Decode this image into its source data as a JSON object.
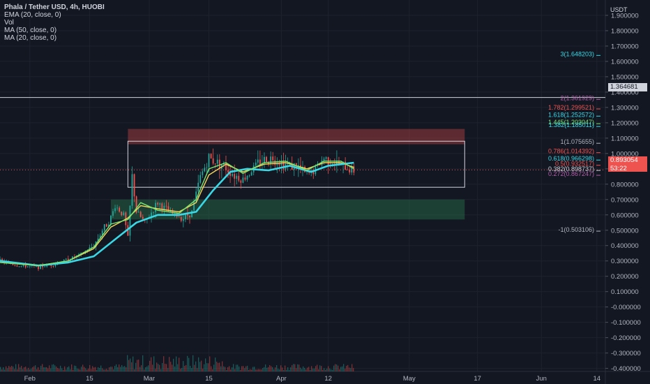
{
  "legend": {
    "symbol": "Phala / Tether USD, 4h, HUOBI",
    "indicators": [
      "EMA (20, close, 0)",
      "Vol",
      "MA (50, close, 0)",
      "MA (20, close, 0)"
    ]
  },
  "currency": "USDT",
  "last_price": {
    "value": "0.893054",
    "countdown": "53:22",
    "color": "#ef5350"
  },
  "hline_price": {
    "value": "1.364681"
  },
  "colors": {
    "background": "#131722",
    "grid": "#1e222d",
    "axis_text": "#b2b5be",
    "up": "#26a69a",
    "down": "#ef5350",
    "ema20": "#f5d65b",
    "ma50": "#3ad7e5",
    "ma20": "#7be36f",
    "supply_zone": "#e74c4c",
    "demand_zone": "#2e8b57"
  },
  "chart_data": {
    "type": "line",
    "title": "Phala / Tether USD, 4h, HUOBI",
    "ylim": [
      -0.42,
      2.0
    ],
    "x_range": [
      "2021-01-25",
      "2021-06-16"
    ],
    "y_ticks": [
      "1.900000",
      "1.800000",
      "1.700000",
      "1.600000",
      "1.500000",
      "1.400000",
      "1.300000",
      "1.200000",
      "1.100000",
      "1.000000",
      "0.900000",
      "0.800000",
      "0.700000",
      "0.600000",
      "0.500000",
      "0.400000",
      "0.300000",
      "0.200000",
      "0.100000",
      "-0.000000",
      "-0.100000",
      "-0.200000",
      "-0.300000",
      "-0.400000"
    ],
    "y_tick_values": [
      1.9,
      1.8,
      1.7,
      1.6,
      1.5,
      1.4,
      1.3,
      1.2,
      1.1,
      1.0,
      0.9,
      0.8,
      0.7,
      0.6,
      0.5,
      0.4,
      0.3,
      0.2,
      0.1,
      0.0,
      -0.1,
      -0.2,
      -0.3,
      -0.4
    ],
    "x_ticks": [
      {
        "label": "Feb",
        "date": "2021-02-01"
      },
      {
        "label": "15",
        "date": "2021-02-15"
      },
      {
        "label": "Mar",
        "date": "2021-03-01"
      },
      {
        "label": "15",
        "date": "2021-03-15"
      },
      {
        "label": "Apr",
        "date": "2021-04-01"
      },
      {
        "label": "12",
        "date": "2021-04-12"
      },
      {
        "label": "May",
        "date": "2021-05-01"
      },
      {
        "label": "17",
        "date": "2021-05-17"
      },
      {
        "label": "Jun",
        "date": "2021-06-01"
      },
      {
        "label": "14",
        "date": "2021-06-14"
      }
    ],
    "price_path": [
      [
        "2021-01-25",
        0.3
      ],
      [
        "2021-01-29",
        0.27
      ],
      [
        "2021-02-03",
        0.26
      ],
      [
        "2021-02-07",
        0.28
      ],
      [
        "2021-02-10",
        0.31
      ],
      [
        "2021-02-13",
        0.34
      ],
      [
        "2021-02-16",
        0.4
      ],
      [
        "2021-02-18",
        0.5
      ],
      [
        "2021-02-20",
        0.58
      ],
      [
        "2021-02-21",
        0.66
      ],
      [
        "2021-02-23",
        0.6
      ],
      [
        "2021-02-24",
        0.45
      ],
      [
        "2021-02-25",
        0.85
      ],
      [
        "2021-02-26",
        0.62
      ],
      [
        "2021-02-28",
        0.55
      ],
      [
        "2021-03-03",
        0.68
      ],
      [
        "2021-03-06",
        0.61
      ],
      [
        "2021-03-09",
        0.58
      ],
      [
        "2021-03-11",
        0.62
      ],
      [
        "2021-03-13",
        0.85
      ],
      [
        "2021-03-15",
        0.97
      ],
      [
        "2021-03-18",
        0.93
      ],
      [
        "2021-03-21",
        0.86
      ],
      [
        "2021-03-23",
        0.83
      ],
      [
        "2021-03-27",
        0.95
      ],
      [
        "2021-03-30",
        0.97
      ],
      [
        "2021-04-02",
        0.93
      ],
      [
        "2021-04-05",
        0.91
      ],
      [
        "2021-04-07",
        0.86
      ],
      [
        "2021-04-09",
        0.9
      ],
      [
        "2021-04-11",
        0.97
      ],
      [
        "2021-04-14",
        0.93
      ],
      [
        "2021-04-17",
        0.9
      ],
      [
        "2021-04-18",
        0.89
      ]
    ],
    "series": [
      {
        "name": "EMA (20, close, 0)",
        "color": "#f5d65b",
        "points": [
          [
            "2021-01-25",
            0.29
          ],
          [
            "2021-02-03",
            0.27
          ],
          [
            "2021-02-10",
            0.3
          ],
          [
            "2021-02-16",
            0.38
          ],
          [
            "2021-02-20",
            0.52
          ],
          [
            "2021-02-24",
            0.58
          ],
          [
            "2021-02-27",
            0.66
          ],
          [
            "2021-03-03",
            0.64
          ],
          [
            "2021-03-08",
            0.62
          ],
          [
            "2021-03-12",
            0.68
          ],
          [
            "2021-03-15",
            0.86
          ],
          [
            "2021-03-19",
            0.93
          ],
          [
            "2021-03-23",
            0.88
          ],
          [
            "2021-03-28",
            0.93
          ],
          [
            "2021-04-02",
            0.94
          ],
          [
            "2021-04-07",
            0.9
          ],
          [
            "2021-04-11",
            0.94
          ],
          [
            "2021-04-15",
            0.94
          ],
          [
            "2021-04-18",
            0.91
          ]
        ]
      },
      {
        "name": "MA (50, close, 0)",
        "color": "#3ad7e5",
        "points": [
          [
            "2021-01-25",
            0.3
          ],
          [
            "2021-02-03",
            0.27
          ],
          [
            "2021-02-10",
            0.29
          ],
          [
            "2021-02-16",
            0.33
          ],
          [
            "2021-02-21",
            0.44
          ],
          [
            "2021-02-26",
            0.55
          ],
          [
            "2021-03-03",
            0.6
          ],
          [
            "2021-03-08",
            0.6
          ],
          [
            "2021-03-12",
            0.62
          ],
          [
            "2021-03-16",
            0.76
          ],
          [
            "2021-03-20",
            0.88
          ],
          [
            "2021-03-24",
            0.9
          ],
          [
            "2021-03-29",
            0.89
          ],
          [
            "2021-04-03",
            0.92
          ],
          [
            "2021-04-08",
            0.88
          ],
          [
            "2021-04-12",
            0.92
          ],
          [
            "2021-04-18",
            0.94
          ]
        ]
      },
      {
        "name": "MA (20, close, 0)",
        "color": "#7be36f",
        "points": [
          [
            "2021-01-25",
            0.29
          ],
          [
            "2021-02-03",
            0.27
          ],
          [
            "2021-02-10",
            0.3
          ],
          [
            "2021-02-16",
            0.39
          ],
          [
            "2021-02-20",
            0.54
          ],
          [
            "2021-02-24",
            0.57
          ],
          [
            "2021-02-27",
            0.68
          ],
          [
            "2021-03-03",
            0.63
          ],
          [
            "2021-03-08",
            0.61
          ],
          [
            "2021-03-12",
            0.7
          ],
          [
            "2021-03-15",
            0.9
          ],
          [
            "2021-03-19",
            0.94
          ],
          [
            "2021-03-23",
            0.87
          ],
          [
            "2021-03-28",
            0.94
          ],
          [
            "2021-04-02",
            0.95
          ],
          [
            "2021-04-07",
            0.89
          ],
          [
            "2021-04-11",
            0.95
          ],
          [
            "2021-04-15",
            0.95
          ],
          [
            "2021-04-18",
            0.9
          ]
        ]
      }
    ],
    "zones": [
      {
        "name": "supply",
        "from": "2021-02-24",
        "to": "2021-05-14",
        "top": 1.16,
        "bottom": 1.06,
        "color": "#e74c4c"
      },
      {
        "name": "demand",
        "from": "2021-02-20",
        "to": "2021-05-14",
        "top": 0.7,
        "bottom": 0.57,
        "color": "#2e8b57"
      },
      {
        "name": "range",
        "from": "2021-02-24",
        "to": "2021-05-14",
        "top": 1.08,
        "bottom": 0.78,
        "color": "#d1d4dc"
      }
    ],
    "fib_levels": [
      {
        "label": "3(1.648203)",
        "value": 1.648203,
        "color": "#3ad7e5"
      },
      {
        "label": "2(1.361929)",
        "value": 1.361929,
        "color": "#b05fa8"
      },
      {
        "label": "1.782(1.299521)",
        "value": 1.299521,
        "color": "#ef5350"
      },
      {
        "label": "1.618(1.252572)",
        "value": 1.252572,
        "color": "#3ad7e5"
      },
      {
        "label": "1.445(1.203047)",
        "value": 1.203047,
        "color": "#7be36f"
      },
      {
        "label": "1.382(1.185011)",
        "value": 1.185011,
        "color": "#3ad7e5"
      },
      {
        "label": "1(1.075655)",
        "value": 1.075655,
        "color": "#b2b5be"
      },
      {
        "label": "0.786(1.014392)",
        "value": 1.014392,
        "color": "#ef5350"
      },
      {
        "label": "0.618(0.966298)",
        "value": 0.966298,
        "color": "#3ad7e5"
      },
      {
        "label": "0.5(0.932517)",
        "value": 0.932517,
        "color": "#ef5350"
      },
      {
        "label": "0.382(0.898737)",
        "value": 0.898737,
        "color": "#d1d4dc"
      },
      {
        "label": "0.272(0.867247)",
        "value": 0.867247,
        "color": "#b05fa8"
      },
      {
        "label": "-1(0.503106)",
        "value": 0.503106,
        "color": "#b2b5be"
      }
    ],
    "hline": 1.364681,
    "last_price": 0.893054
  }
}
